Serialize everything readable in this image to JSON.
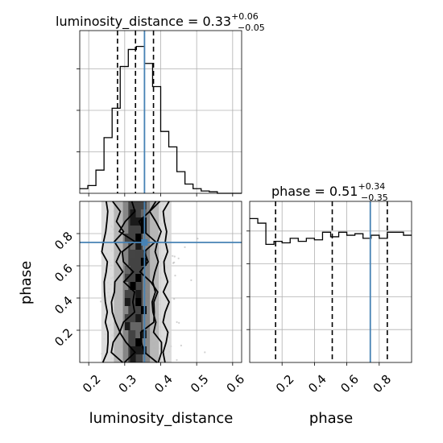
{
  "chart_data": {
    "type": "corner",
    "parameters": [
      "luminosity_distance",
      "phase"
    ],
    "titles": {
      "luminosity_distance": {
        "prefix": "luminosity_distance = ",
        "median": "0.33",
        "plus": "+0.06",
        "minus": "−0.05"
      },
      "phase": {
        "prefix": "phase = ",
        "median": "0.51",
        "plus": "+0.34",
        "minus": "−0.35"
      }
    },
    "axis_labels": {
      "x1": "luminosity_distance",
      "x2": "phase",
      "y": "phase"
    },
    "ranges": {
      "luminosity_distance": [
        0.175,
        0.625
      ],
      "phase": [
        0.0,
        1.0
      ]
    },
    "ticks": {
      "luminosity_distance": [
        0.2,
        0.3,
        0.4,
        0.5,
        0.6
      ],
      "luminosity_distance_labels": [
        "0.2",
        "0.3",
        "0.4",
        "0.5",
        "0.6"
      ],
      "phase": [
        0.2,
        0.4,
        0.6,
        0.8
      ],
      "phase_labels": [
        "0.2",
        "0.4",
        "0.6",
        "0.8"
      ]
    },
    "truth": {
      "luminosity_distance": 0.355,
      "phase": 0.745
    },
    "quantiles": {
      "luminosity_distance": [
        0.28,
        0.33,
        0.38
      ],
      "phase": [
        0.16,
        0.51,
        0.85
      ]
    },
    "histogram_luminosity_distance": {
      "bin_edges": [
        0.175,
        0.1975,
        0.22,
        0.2425,
        0.265,
        0.2875,
        0.31,
        0.3325,
        0.355,
        0.3775,
        0.4,
        0.4225,
        0.445,
        0.4675,
        0.49,
        0.5125,
        0.535,
        0.5575,
        0.58,
        0.6025,
        0.625
      ],
      "counts": [
        0.03,
        0.05,
        0.15,
        0.36,
        0.55,
        0.82,
        0.93,
        0.95,
        0.84,
        0.69,
        0.4,
        0.3,
        0.14,
        0.06,
        0.03,
        0.015,
        0.01,
        0.0,
        0.0,
        0.0
      ]
    },
    "histogram_phase": {
      "bin_edges": [
        0.0,
        0.05,
        0.1,
        0.15,
        0.2,
        0.25,
        0.3,
        0.35,
        0.4,
        0.45,
        0.5,
        0.55,
        0.6,
        0.65,
        0.7,
        0.75,
        0.8,
        0.85,
        0.9,
        0.95,
        1.0
      ],
      "counts": [
        0.95,
        0.92,
        0.78,
        0.8,
        0.79,
        0.82,
        0.8,
        0.82,
        0.81,
        0.86,
        0.83,
        0.86,
        0.84,
        0.85,
        0.82,
        0.84,
        0.82,
        0.86,
        0.86,
        0.84
      ]
    },
    "contour_levels_x_bounds": [
      {
        "left": 0.245,
        "right": 0.415
      },
      {
        "left": 0.28,
        "right": 0.385
      },
      {
        "left": 0.305,
        "right": 0.365
      }
    ],
    "grid": true
  }
}
